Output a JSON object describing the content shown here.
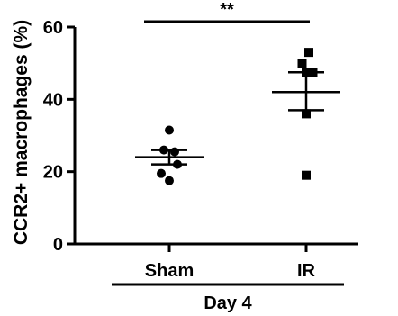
{
  "chart_data": {
    "type": "scatter",
    "ylabel": "CCR2+ macrophages (%)",
    "ylim": [
      0,
      60
    ],
    "yticks": [
      0,
      20,
      40,
      60
    ],
    "grid": false,
    "categories": [
      "Sham",
      "IR"
    ],
    "group_label": "Day 4",
    "significance": "**",
    "series": [
      {
        "category": "Sham",
        "marker": "circle",
        "values": [
          31.5,
          26.0,
          25.5,
          22.0,
          19.5,
          17.5
        ],
        "x_jitter": [
          0,
          -0.2,
          0.2,
          0.3,
          -0.3,
          0
        ],
        "mean": 24.0,
        "sem_low": 22.0,
        "sem_high": 26.0
      },
      {
        "category": "IR",
        "marker": "square",
        "values": [
          53.0,
          50.0,
          47.5,
          47.5,
          36.0,
          19.0
        ],
        "x_jitter": [
          0.1,
          -0.15,
          0,
          0.25,
          0,
          0
        ],
        "mean": 42.0,
        "sem_low": 37.0,
        "sem_high": 47.5
      }
    ],
    "colors": {
      "marks": "#000000",
      "background": "#ffffff"
    }
  }
}
